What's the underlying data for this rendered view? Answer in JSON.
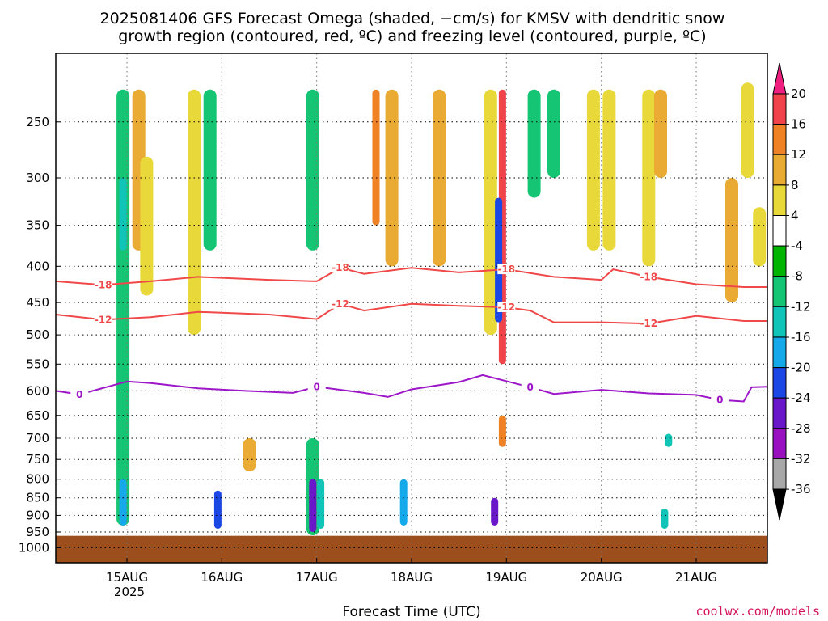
{
  "chart_data": {
    "type": "heatmap",
    "title_lines": [
      "2025081406 GFS Forecast Omega (shaded, −cm/s) for KMSV with dendritic snow",
      "growth region (contoured, red, ºC) and freezing level (contoured, purple, ºC)"
    ],
    "xlabel": "Forecast Time (UTC)",
    "ylabel": "",
    "x_range_days": [
      "2025-08-14T06",
      "2025-08-21T18"
    ],
    "x_ticks": [
      {
        "label": "15AUG",
        "date": "2025-08-15T00"
      },
      {
        "label": "16AUG",
        "date": "2025-08-16T00"
      },
      {
        "label": "17AUG",
        "date": "2025-08-17T00"
      },
      {
        "label": "18AUG",
        "date": "2025-08-18T00"
      },
      {
        "label": "19AUG",
        "date": "2025-08-19T00"
      },
      {
        "label": "20AUG",
        "date": "2025-08-20T00"
      },
      {
        "label": "21AUG",
        "date": "2025-08-21T00"
      }
    ],
    "x_year_label": "2025",
    "y_axis": "pressure (hPa), log scale, inverted",
    "y_range": [
      1050,
      200
    ],
    "y_ticks": [
      250,
      300,
      350,
      400,
      450,
      500,
      550,
      600,
      650,
      700,
      750,
      800,
      850,
      900,
      950,
      1000
    ],
    "grid": true,
    "colorbar": {
      "labels": [
        "20",
        "16",
        "12",
        "8",
        "4",
        "-4",
        "-8",
        "-12",
        "-16",
        "-20",
        "-24",
        "-28",
        "-32",
        "-36"
      ],
      "colors": [
        "#ee1f7f",
        "#f0444a",
        "#ee8225",
        "#e9ab33",
        "#e8d83a",
        "#ffffff",
        "#00b400",
        "#15c573",
        "#10c4b7",
        "#15a8eb",
        "#1b47e4",
        "#6a17c9",
        "#9a0fbf",
        "#a8a8a8",
        "#000000"
      ]
    },
    "ground_color": "#9c4e1d",
    "contours": [
      {
        "name": "-18",
        "color": "#f04848",
        "label": "-18",
        "points": [
          [
            "2025-08-14T06",
            420
          ],
          [
            "2025-08-14T18",
            425
          ],
          [
            "2025-08-15T06",
            420
          ],
          [
            "2025-08-15T18",
            414
          ],
          [
            "2025-08-16T12",
            418
          ],
          [
            "2025-08-17T00",
            420
          ],
          [
            "2025-08-17T06",
            402
          ],
          [
            "2025-08-17T12",
            410
          ],
          [
            "2025-08-18T00",
            402
          ],
          [
            "2025-08-18T12",
            408
          ],
          [
            "2025-08-19T00",
            404
          ],
          [
            "2025-08-19T12",
            414
          ],
          [
            "2025-08-20T00",
            418
          ],
          [
            "2025-08-20T03",
            404
          ],
          [
            "2025-08-20T12",
            414
          ],
          [
            "2025-08-21T00",
            424
          ],
          [
            "2025-08-21T12",
            428
          ],
          [
            "2025-08-21T18",
            428
          ]
        ]
      },
      {
        "name": "-12",
        "color": "#f04848",
        "label": "-12",
        "points": [
          [
            "2025-08-14T06",
            468
          ],
          [
            "2025-08-14T18",
            476
          ],
          [
            "2025-08-15T06",
            472
          ],
          [
            "2025-08-15T18",
            464
          ],
          [
            "2025-08-16T12",
            468
          ],
          [
            "2025-08-17T00",
            475
          ],
          [
            "2025-08-17T06",
            452
          ],
          [
            "2025-08-17T12",
            462
          ],
          [
            "2025-08-18T00",
            452
          ],
          [
            "2025-08-18T12",
            455
          ],
          [
            "2025-08-19T00",
            457
          ],
          [
            "2025-08-19T06",
            462
          ],
          [
            "2025-08-19T12",
            480
          ],
          [
            "2025-08-20T00",
            480
          ],
          [
            "2025-08-20T12",
            482
          ],
          [
            "2025-08-21T00",
            470
          ],
          [
            "2025-08-21T12",
            478
          ],
          [
            "2025-08-21T18",
            478
          ]
        ]
      },
      {
        "name": "0",
        "color": "#9d16c8",
        "label": "0",
        "points": [
          [
            "2025-08-14T06",
            600
          ],
          [
            "2025-08-14T12",
            607
          ],
          [
            "2025-08-15T00",
            582
          ],
          [
            "2025-08-15T06",
            585
          ],
          [
            "2025-08-15T18",
            595
          ],
          [
            "2025-08-16T06",
            600
          ],
          [
            "2025-08-16T18",
            604
          ],
          [
            "2025-08-17T00",
            592
          ],
          [
            "2025-08-17T12",
            604
          ],
          [
            "2025-08-17T18",
            612
          ],
          [
            "2025-08-18T00",
            597
          ],
          [
            "2025-08-18T12",
            583
          ],
          [
            "2025-08-18T18",
            570
          ],
          [
            "2025-08-19T06",
            593
          ],
          [
            "2025-08-19T12",
            606
          ],
          [
            "2025-08-20T00",
            598
          ],
          [
            "2025-08-20T12",
            605
          ],
          [
            "2025-08-21T00",
            608
          ],
          [
            "2025-08-21T06",
            618
          ],
          [
            "2025-08-21T12",
            621
          ],
          [
            "2025-08-21T14",
            593
          ],
          [
            "2025-08-21T18",
            592
          ]
        ]
      }
    ],
    "omega_features": [
      {
        "time": "2025-08-14T23",
        "p_top": 225,
        "p_bot": 930,
        "value": -8
      },
      {
        "time": "2025-08-14T23",
        "p_top": 800,
        "p_bot": 930,
        "value": -16
      },
      {
        "time": "2025-08-14T23",
        "p_top": 300,
        "p_bot": 380,
        "value": -12
      },
      {
        "time": "2025-08-15T03",
        "p_top": 225,
        "p_bot": 380,
        "value": 8
      },
      {
        "time": "2025-08-15T05",
        "p_top": 280,
        "p_bot": 440,
        "value": 4
      },
      {
        "time": "2025-08-15T17",
        "p_top": 225,
        "p_bot": 500,
        "value": 4
      },
      {
        "time": "2025-08-15T21",
        "p_top": 225,
        "p_bot": 380,
        "value": -8
      },
      {
        "time": "2025-08-15T23",
        "p_top": 830,
        "p_bot": 940,
        "value": -20
      },
      {
        "time": "2025-08-16T07",
        "p_top": 700,
        "p_bot": 780,
        "value": 8
      },
      {
        "time": "2025-08-16T23",
        "p_top": 700,
        "p_bot": 960,
        "value": -8
      },
      {
        "time": "2025-08-16T23",
        "p_top": 800,
        "p_bot": 950,
        "value": -24
      },
      {
        "time": "2025-08-16T23",
        "p_top": 225,
        "p_bot": 380,
        "value": -8
      },
      {
        "time": "2025-08-17T01",
        "p_top": 800,
        "p_bot": 940,
        "value": -12
      },
      {
        "time": "2025-08-17T15",
        "p_top": 225,
        "p_bot": 350,
        "value": 12
      },
      {
        "time": "2025-08-17T19",
        "p_top": 225,
        "p_bot": 400,
        "value": 8
      },
      {
        "time": "2025-08-17T22",
        "p_top": 800,
        "p_bot": 930,
        "value": -16
      },
      {
        "time": "2025-08-18T07",
        "p_top": 225,
        "p_bot": 400,
        "value": 8
      },
      {
        "time": "2025-08-18T20",
        "p_top": 225,
        "p_bot": 500,
        "value": 4
      },
      {
        "time": "2025-08-18T23",
        "p_top": 225,
        "p_bot": 550,
        "value": 16
      },
      {
        "time": "2025-08-18T23",
        "p_top": 650,
        "p_bot": 720,
        "value": 12
      },
      {
        "time": "2025-08-18T22",
        "p_top": 320,
        "p_bot": 480,
        "value": -20
      },
      {
        "time": "2025-08-18T21",
        "p_top": 850,
        "p_bot": 930,
        "value": -24
      },
      {
        "time": "2025-08-19T07",
        "p_top": 225,
        "p_bot": 320,
        "value": -8
      },
      {
        "time": "2025-08-19T12",
        "p_top": 225,
        "p_bot": 300,
        "value": -8
      },
      {
        "time": "2025-08-19T22",
        "p_top": 225,
        "p_bot": 380,
        "value": 4
      },
      {
        "time": "2025-08-20T02",
        "p_top": 225,
        "p_bot": 380,
        "value": 4
      },
      {
        "time": "2025-08-20T12",
        "p_top": 225,
        "p_bot": 400,
        "value": 4
      },
      {
        "time": "2025-08-20T15",
        "p_top": 225,
        "p_bot": 300,
        "value": 8
      },
      {
        "time": "2025-08-20T17",
        "p_top": 690,
        "p_bot": 720,
        "value": -12
      },
      {
        "time": "2025-08-20T16",
        "p_top": 880,
        "p_bot": 940,
        "value": -12
      },
      {
        "time": "2025-08-21T09",
        "p_top": 300,
        "p_bot": 450,
        "value": 8
      },
      {
        "time": "2025-08-21T13",
        "p_top": 220,
        "p_bot": 300,
        "value": 4
      },
      {
        "time": "2025-08-21T16",
        "p_top": 330,
        "p_bot": 400,
        "value": 4
      }
    ]
  },
  "credit": "coolwx.com/models"
}
